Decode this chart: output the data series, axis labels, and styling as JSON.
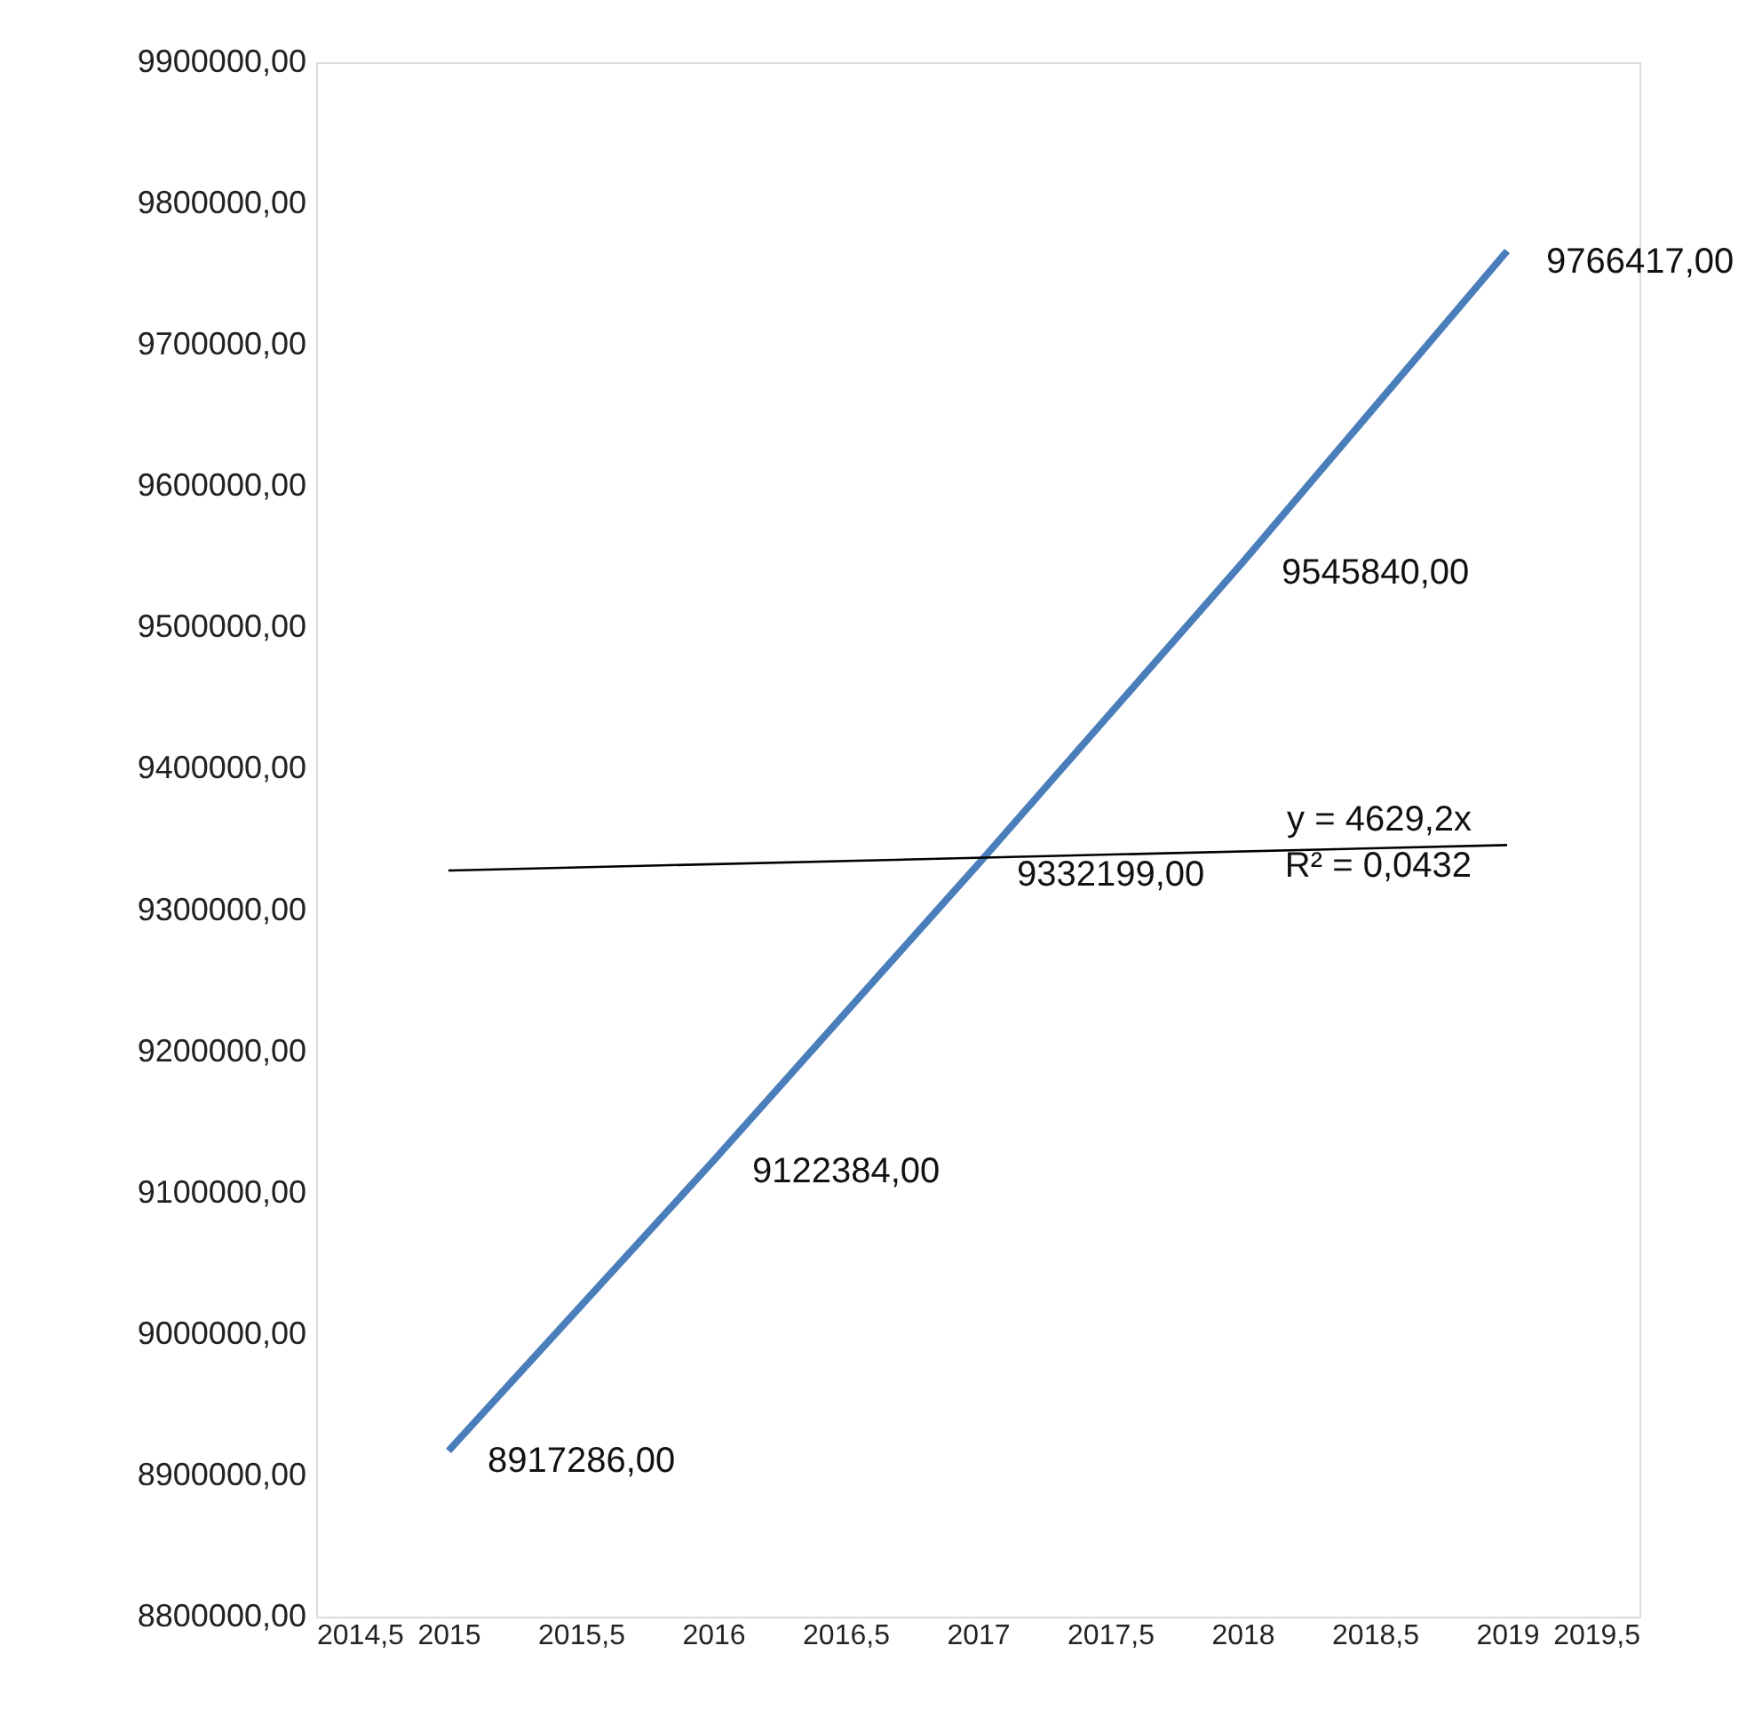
{
  "chart_data": {
    "type": "line",
    "x": [
      2015,
      2016,
      2017,
      2018,
      2019
    ],
    "series": [
      {
        "type": "line",
        "color": "#4a7ebb",
        "values": [
          8917286,
          9122384,
          9332199,
          9545840,
          9766417
        ],
        "value_labels": [
          "8917286,00",
          "9122384,00",
          "9332199,00",
          "9545840,00",
          "9766417,00"
        ]
      },
      {
        "type": "line",
        "color": "#000000",
        "x": [
          2015,
          2019
        ],
        "values": [
          9328000,
          9346000
        ]
      }
    ],
    "annotations": [
      "y = 4629,2x",
      "R² = 0,0432"
    ],
    "xlim": [
      2014.5,
      2019.5
    ],
    "xticks": [
      {
        "value": 2014.5,
        "label": "2014,5"
      },
      2015,
      {
        "value": 2015.5,
        "label": "2015,5"
      },
      2016,
      {
        "value": 2016.5,
        "label": "2016,5"
      },
      2017,
      {
        "value": 2017.5,
        "label": "2017,5"
      },
      2018,
      {
        "value": 2018.5,
        "label": "2018,5"
      },
      2019,
      {
        "value": 2019.5,
        "label": "2019,5"
      }
    ],
    "ylim": [
      8800000,
      9900000
    ],
    "yticks": [
      {
        "value": 8800000,
        "label": "8800000,00"
      },
      {
        "value": 8900000,
        "label": "8900000,00"
      },
      {
        "value": 9000000,
        "label": "9000000,00"
      },
      {
        "value": 9100000,
        "label": "9100000,00"
      },
      {
        "value": 9200000,
        "label": "9200000,00"
      },
      {
        "value": 9300000,
        "label": "9300000,00"
      },
      {
        "value": 9400000,
        "label": "9400000,00"
      },
      {
        "value": 9500000,
        "label": "9500000,00"
      },
      {
        "value": 9600000,
        "label": "9600000,00"
      },
      {
        "value": 9700000,
        "label": "9700000,00"
      },
      {
        "value": 9800000,
        "label": "9800000,00"
      },
      {
        "value": 9900000,
        "label": "9900000,00"
      }
    ],
    "grid": false,
    "marker": "none"
  }
}
